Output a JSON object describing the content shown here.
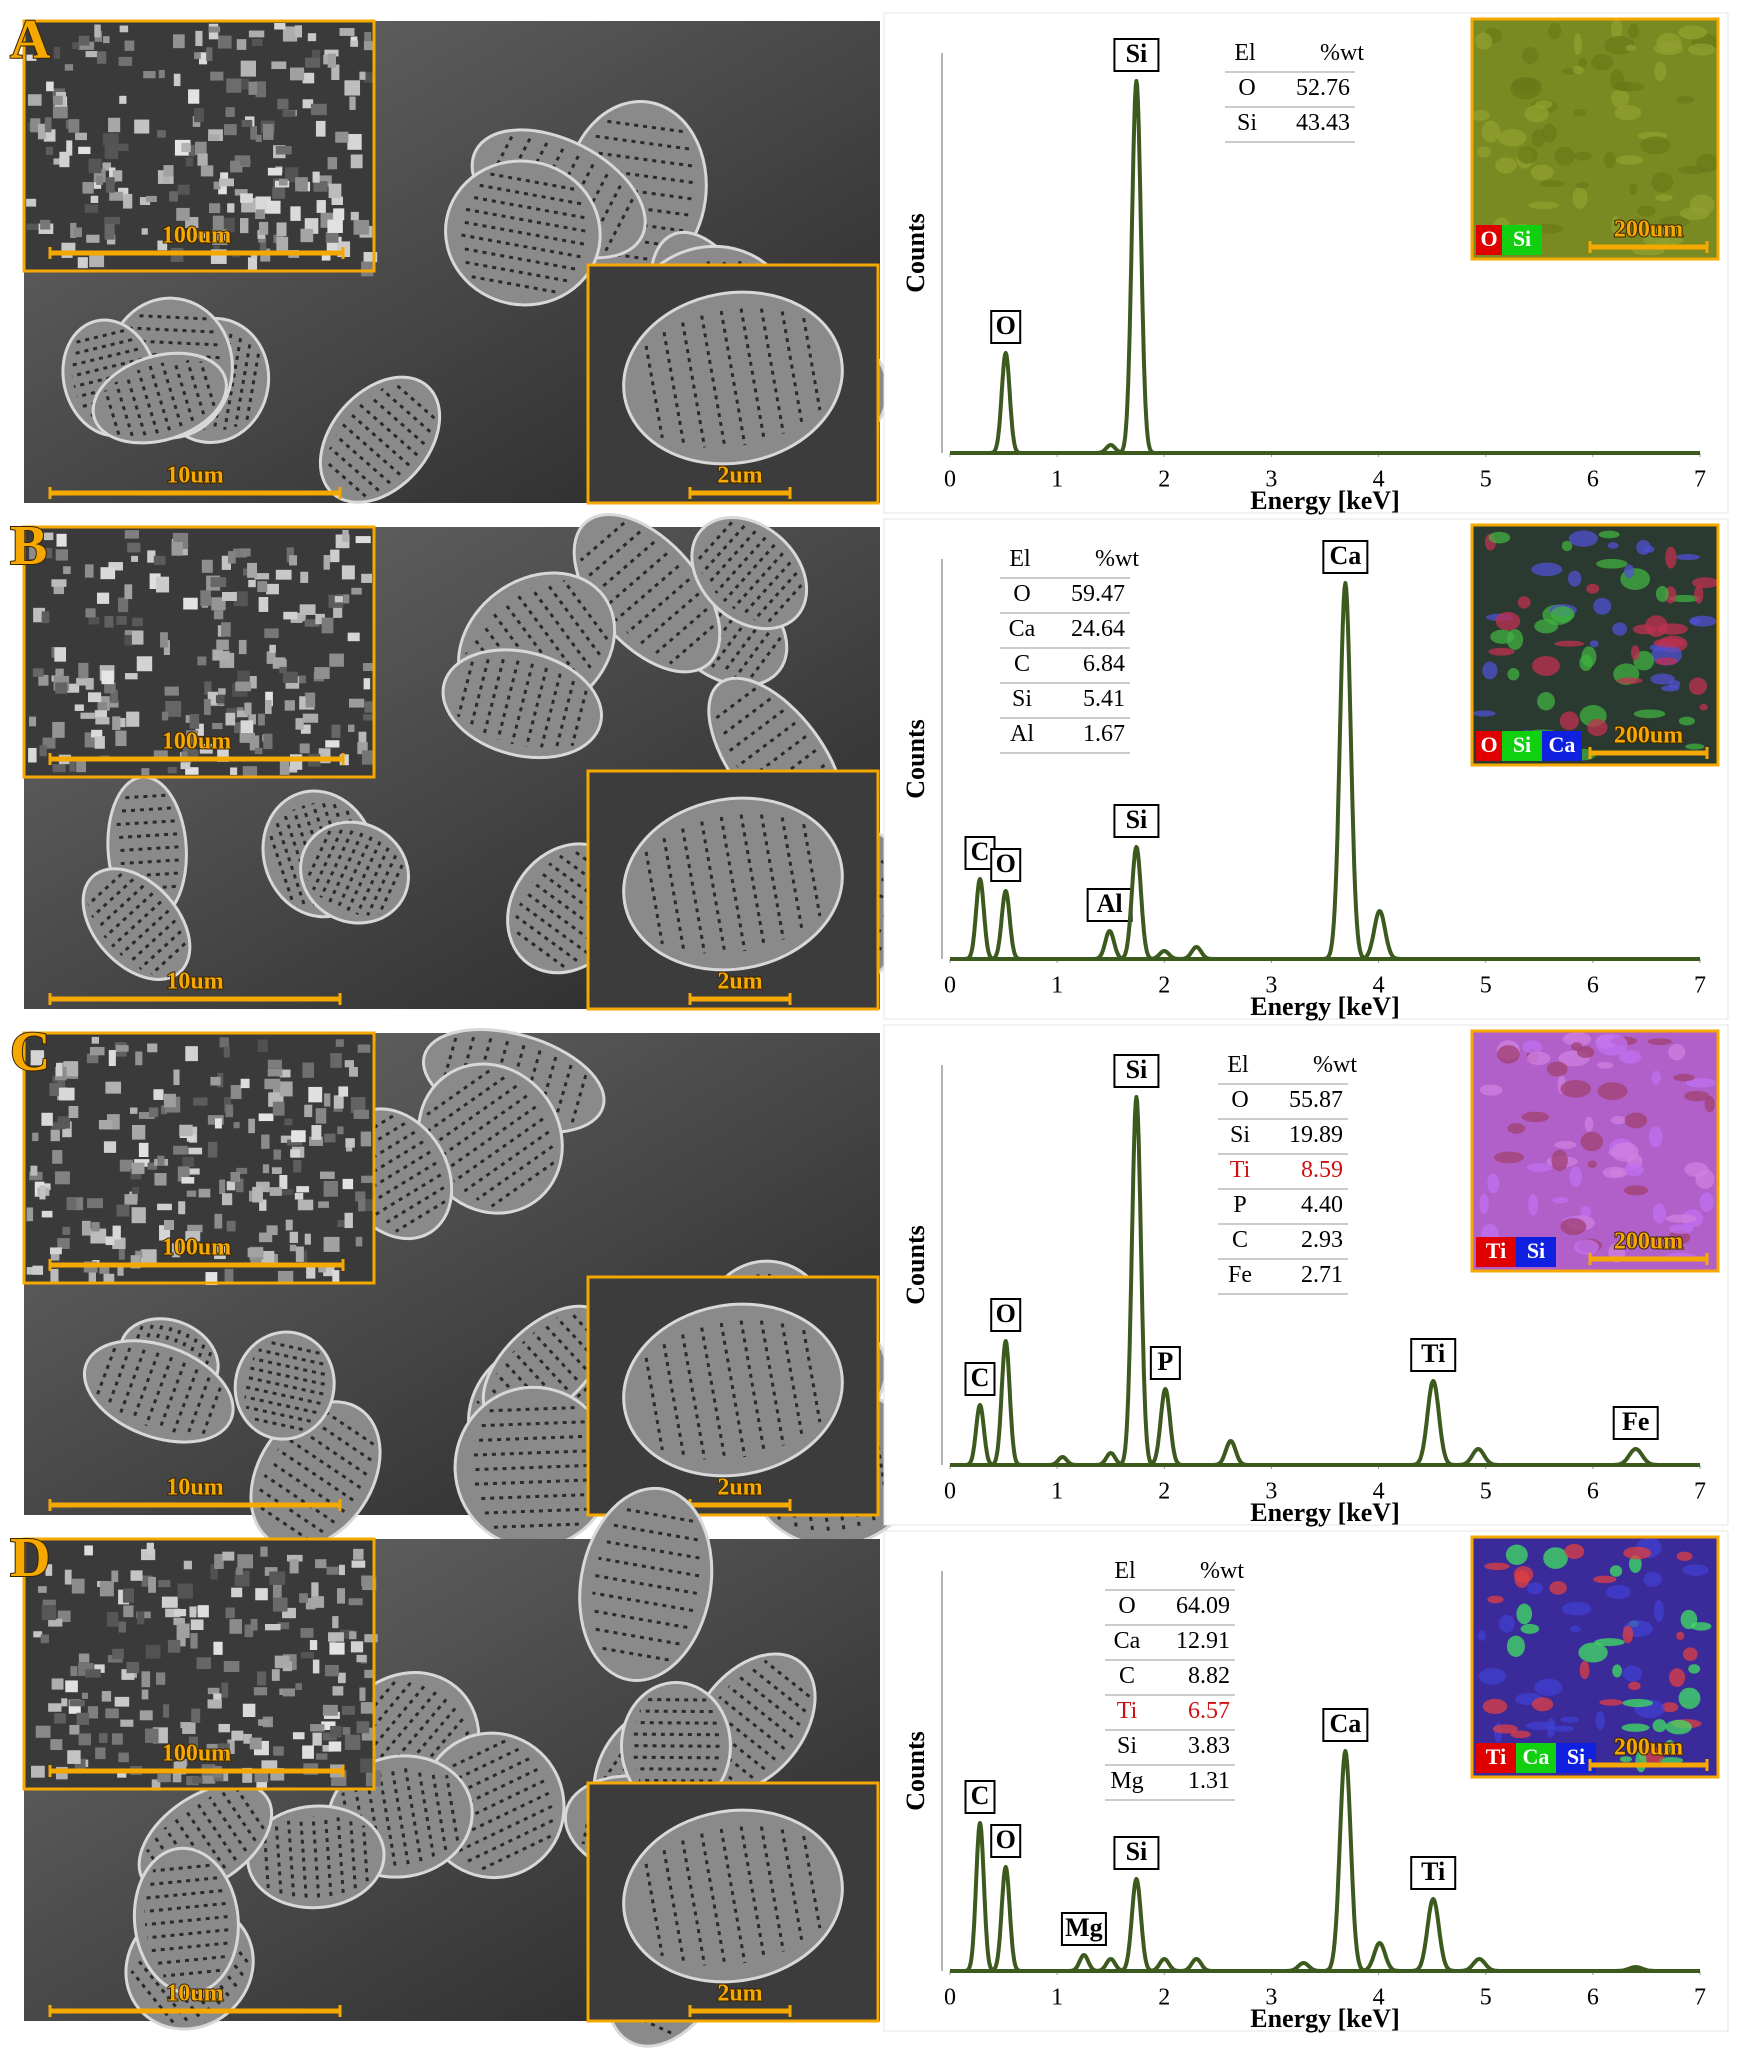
{
  "axes": {
    "xlabel": "Energy [keV]",
    "ylabel": "Counts",
    "xlim": [
      0,
      7
    ],
    "xticks": [
      0,
      1,
      2,
      3,
      4,
      5,
      6,
      7
    ],
    "ylim": [
      0,
      100
    ]
  },
  "panels": [
    {
      "label": "A",
      "sem": {
        "inset_scale": "100um",
        "main_scale": "10um",
        "zoom_scale": "2um"
      },
      "spectrum": {
        "type": "line",
        "color": "#3d5a1e",
        "peaks": [
          {
            "label": "O",
            "x": 0.52,
            "height": 25
          },
          {
            "label": null,
            "x": 1.5,
            "height": 2
          },
          {
            "label": "Si",
            "x": 1.74,
            "height": 93
          }
        ]
      },
      "table": {
        "header": [
          "El",
          "%wt"
        ],
        "rows": [
          {
            "el": "O",
            "wt": "52.76"
          },
          {
            "el": "Si",
            "wt": "43.43"
          }
        ]
      },
      "map": {
        "elements": [
          {
            "name": "O",
            "color": "#e00000"
          },
          {
            "name": "Si",
            "color": "#10d010"
          }
        ],
        "scale": "200um"
      }
    },
    {
      "label": "B",
      "sem": {
        "inset_scale": "100um",
        "main_scale": "10um",
        "zoom_scale": "2um"
      },
      "spectrum": {
        "type": "line",
        "color": "#3d5a1e",
        "peaks": [
          {
            "label": "C",
            "x": 0.28,
            "height": 20
          },
          {
            "label": "O",
            "x": 0.52,
            "height": 17
          },
          {
            "label": "Al",
            "x": 1.49,
            "height": 7
          },
          {
            "label": "Si",
            "x": 1.74,
            "height": 28
          },
          {
            "label": null,
            "x": 2.0,
            "height": 2
          },
          {
            "label": null,
            "x": 2.3,
            "height": 3
          },
          {
            "label": "Ca",
            "x": 3.69,
            "height": 94
          },
          {
            "label": null,
            "x": 4.01,
            "height": 12
          }
        ]
      },
      "table": {
        "header": [
          "El",
          "%wt"
        ],
        "rows": [
          {
            "el": "O",
            "wt": "59.47"
          },
          {
            "el": "Ca",
            "wt": "24.64"
          },
          {
            "el": "C",
            "wt": "6.84"
          },
          {
            "el": "Si",
            "wt": "5.41"
          },
          {
            "el": "Al",
            "wt": "1.67"
          }
        ]
      },
      "map": {
        "elements": [
          {
            "name": "O",
            "color": "#e00000"
          },
          {
            "name": "Si",
            "color": "#10d010"
          },
          {
            "name": "Ca",
            "color": "#1020e0"
          }
        ],
        "scale": "200um"
      }
    },
    {
      "label": "C",
      "sem": {
        "inset_scale": "100um",
        "main_scale": "10um",
        "zoom_scale": "2um"
      },
      "spectrum": {
        "type": "line",
        "color": "#3d5a1e",
        "peaks": [
          {
            "label": "C",
            "x": 0.28,
            "height": 15
          },
          {
            "label": "O",
            "x": 0.52,
            "height": 31
          },
          {
            "label": null,
            "x": 1.05,
            "height": 2
          },
          {
            "label": null,
            "x": 1.5,
            "height": 3
          },
          {
            "label": "Si",
            "x": 1.74,
            "height": 92
          },
          {
            "label": "P",
            "x": 2.01,
            "height": 19
          },
          {
            "label": null,
            "x": 2.62,
            "height": 6
          },
          {
            "label": "Ti",
            "x": 4.51,
            "height": 21
          },
          {
            "label": null,
            "x": 4.93,
            "height": 4
          },
          {
            "label": "Fe",
            "x": 6.4,
            "height": 4
          }
        ]
      },
      "table": {
        "header": [
          "El",
          "%wt"
        ],
        "rows": [
          {
            "el": "O",
            "wt": "55.87"
          },
          {
            "el": "Si",
            "wt": "19.89"
          },
          {
            "el": "Ti",
            "wt": "8.59",
            "color": "#d01010"
          },
          {
            "el": "P",
            "wt": "4.40"
          },
          {
            "el": "C",
            "wt": "2.93"
          },
          {
            "el": "Fe",
            "wt": "2.71"
          }
        ]
      },
      "map": {
        "elements": [
          {
            "name": "Ti",
            "color": "#e00000"
          },
          {
            "name": "Si",
            "color": "#1020e0"
          }
        ],
        "scale": "200um"
      }
    },
    {
      "label": "D",
      "sem": {
        "inset_scale": "100um",
        "main_scale": "10um",
        "zoom_scale": "2um"
      },
      "spectrum": {
        "type": "line",
        "color": "#3d5a1e",
        "peaks": [
          {
            "label": "C",
            "x": 0.28,
            "height": 37
          },
          {
            "label": "O",
            "x": 0.52,
            "height": 26
          },
          {
            "label": "Mg",
            "x": 1.25,
            "height": 4
          },
          {
            "label": null,
            "x": 1.5,
            "height": 3
          },
          {
            "label": "Si",
            "x": 1.74,
            "height": 23
          },
          {
            "label": null,
            "x": 2.0,
            "height": 3
          },
          {
            "label": null,
            "x": 2.3,
            "height": 3
          },
          {
            "label": null,
            "x": 3.3,
            "height": 2
          },
          {
            "label": "Ca",
            "x": 3.69,
            "height": 55
          },
          {
            "label": null,
            "x": 4.01,
            "height": 7
          },
          {
            "label": "Ti",
            "x": 4.51,
            "height": 18
          },
          {
            "label": null,
            "x": 4.94,
            "height": 3
          },
          {
            "label": null,
            "x": 6.4,
            "height": 1
          }
        ]
      },
      "table": {
        "header": [
          "El",
          "%wt"
        ],
        "rows": [
          {
            "el": "O",
            "wt": "64.09"
          },
          {
            "el": "Ca",
            "wt": "12.91"
          },
          {
            "el": "C",
            "wt": "8.82"
          },
          {
            "el": "Ti",
            "wt": "6.57",
            "color": "#d01010"
          },
          {
            "el": "Si",
            "wt": "3.83"
          },
          {
            "el": "Mg",
            "wt": "1.31"
          }
        ]
      },
      "map": {
        "elements": [
          {
            "name": "Ti",
            "color": "#e00000"
          },
          {
            "name": "Ca",
            "color": "#10d010"
          },
          {
            "name": "Si",
            "color": "#1020e0"
          }
        ],
        "scale": "200um"
      }
    }
  ]
}
